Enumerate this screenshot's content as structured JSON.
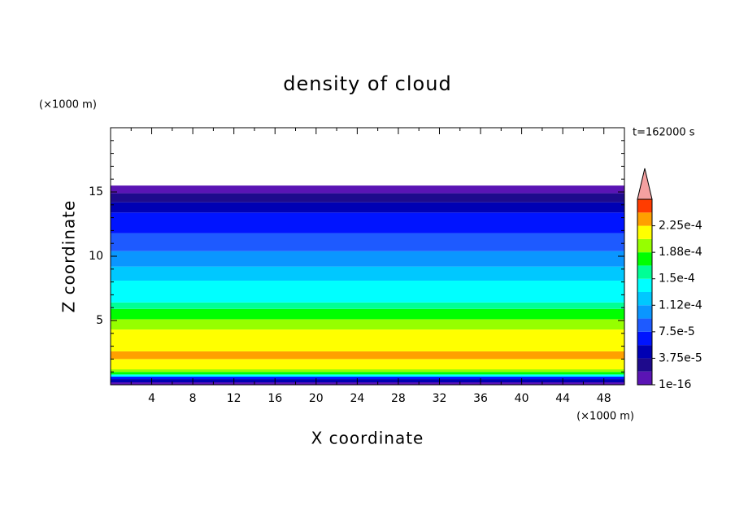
{
  "chart_data": {
    "type": "contour",
    "title": "density of cloud",
    "xlabel": "X coordinate",
    "ylabel": "Z coordinate",
    "x_unit": "(×1000 m)",
    "y_unit": "(×1000 m)",
    "time_label": "t=162000 s",
    "xlim": [
      0,
      50
    ],
    "ylim": [
      0,
      20
    ],
    "xticks": [
      4,
      8,
      12,
      16,
      20,
      24,
      28,
      32,
      36,
      40,
      44,
      48
    ],
    "xminorticks": [
      2,
      6,
      10,
      14,
      18,
      22,
      26,
      30,
      34,
      38,
      42,
      46,
      50
    ],
    "yticks": [
      5,
      10,
      15
    ],
    "yminorticks": [
      1,
      2,
      3,
      4,
      6,
      7,
      8,
      9,
      11,
      12,
      13,
      14,
      16,
      17,
      18,
      19
    ],
    "z_edges": [
      0,
      0.19,
      0.44,
      0.63,
      0.8,
      1.0,
      1.2,
      2.0,
      2.6,
      4.3,
      5.1,
      5.9,
      6.4,
      8.1,
      9.2,
      10.4,
      11.8,
      13.4,
      14.2,
      14.9,
      15.5
    ],
    "values": [
      1e-05,
      4.7e-05,
      6.5e-05,
      0.00014,
      0.000178,
      0.000197,
      0.000216,
      0.000234,
      0.000216,
      0.000197,
      0.000178,
      0.000159,
      0.00014,
      0.000122,
      0.000103,
      8.4e-05,
      6.5e-05,
      4.7e-05,
      2.8e-05,
      1e-05
    ],
    "levels": [
      1e-16,
      1.875e-05,
      3.75e-05,
      5.625e-05,
      7.5e-05,
      9.375e-05,
      0.0001125,
      0.00013125,
      0.00015,
      0.00016875,
      0.0001875,
      0.00020625,
      0.000225,
      0.00024375
    ],
    "colors": [
      "#5a14b4",
      "#1e0a8c",
      "#0000b4",
      "#0014ff",
      "#1e5aff",
      "#0a96ff",
      "#00c8ff",
      "#00ffff",
      "#00ff96",
      "#00ff00",
      "#96ff00",
      "#ffff00",
      "#ffa000",
      "#ff3c00"
    ],
    "extend_color": "#f4a0a0",
    "colorbar_ticks": [
      {
        "value": 1e-16,
        "label": "1e-16"
      },
      {
        "value": 3.75e-05,
        "label": "3.75e-5"
      },
      {
        "value": 7.5e-05,
        "label": "7.5e-5"
      },
      {
        "value": 0.0001125,
        "label": "1.12e-4"
      },
      {
        "value": 0.00015,
        "label": "1.5e-4"
      },
      {
        "value": 0.0001875,
        "label": "1.88e-4"
      },
      {
        "value": 0.000225,
        "label": "2.25e-4"
      }
    ]
  }
}
